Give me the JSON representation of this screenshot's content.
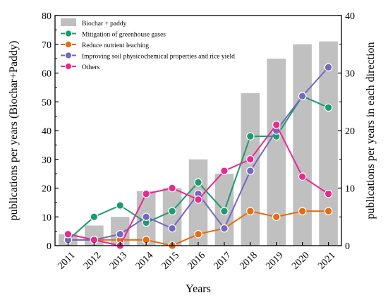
{
  "chart_data": {
    "type": "bar+line",
    "categories": [
      "2011",
      "2012",
      "2013",
      "2014",
      "2015",
      "2016",
      "2017",
      "2018",
      "2019",
      "2020",
      "2021"
    ],
    "xlabel": "Years",
    "ylabel_left": "publications per years (Biochar+Paddy)",
    "ylabel_right": "publications per years in each direction",
    "ylim_left": [
      0,
      80
    ],
    "ylim_right": [
      0,
      40
    ],
    "yticks_left": [
      "0",
      "10",
      "20",
      "30",
      "40",
      "50",
      "60",
      "70",
      "80"
    ],
    "yticks_right": [
      "0",
      "10",
      "20",
      "30",
      "40"
    ],
    "bars": {
      "name": "Biochar + paddy",
      "axis": "left",
      "color": "#c0c0c0",
      "values": [
        4,
        7,
        10,
        19,
        20,
        30,
        25,
        53,
        65,
        70,
        71
      ]
    },
    "series": [
      {
        "name": "Mitigation of greenhouse gases",
        "axis": "right",
        "color": "#1a9c6c",
        "values": [
          1,
          5,
          7,
          4,
          6,
          11,
          6,
          19,
          19,
          26,
          24
        ]
      },
      {
        "name": "Reduce nutrient leaching",
        "axis": "right",
        "color": "#e66b0f",
        "values": [
          1,
          1,
          1,
          1,
          0,
          2,
          3,
          6,
          5,
          6,
          6
        ]
      },
      {
        "name": "Improving soil physicochemical properties and rice yield",
        "axis": "right",
        "color": "#7467c0",
        "values": [
          1,
          1,
          2,
          5,
          3,
          9,
          3,
          13,
          20,
          26,
          31
        ]
      },
      {
        "name": "Others",
        "axis": "right",
        "color": "#e8298f",
        "values": [
          2,
          1,
          0,
          9,
          10,
          8,
          13,
          15,
          21,
          12,
          9
        ]
      }
    ],
    "legend_position": "top-left",
    "grid": false
  }
}
